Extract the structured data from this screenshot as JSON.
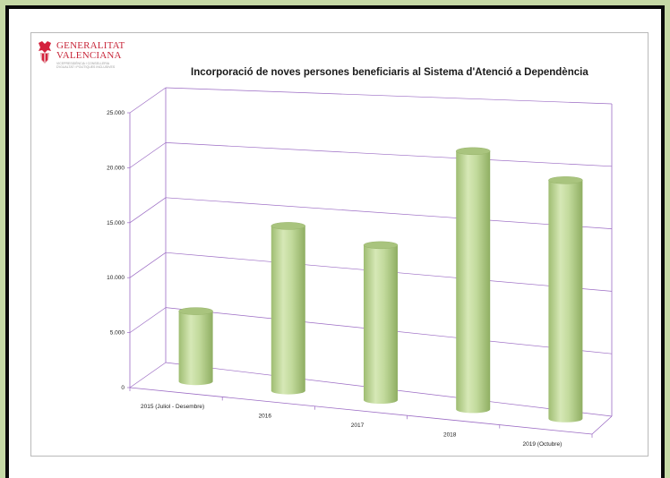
{
  "logo": {
    "line1": "GENERALITAT",
    "line2": "VALENCIANA",
    "sub1": "VICEPRESIDÈNCIA I CONSELLERIA",
    "sub2": "D'IGUALTAT I POLÍTIQUES INCLUSIVES",
    "colors": [
      "#d4213d",
      "#d4213d"
    ]
  },
  "chart_data": {
    "type": "bar",
    "title": "Incorporació de noves persones beneficiaris al Sistema d'Atenció a Dependència",
    "xlabel": "",
    "ylabel": "",
    "categories": [
      "2015 (Juliol - Desembre)",
      "2016",
      "2017",
      "2018",
      "2019 (Octubre)"
    ],
    "values": [
      6400,
      15000,
      14100,
      23500,
      21700
    ],
    "ylim": [
      0,
      25000
    ],
    "yticks": [
      0,
      5000,
      10000,
      15000,
      20000,
      25000
    ],
    "ytick_labels": [
      "0",
      "5.000",
      "10.000",
      "15.000",
      "20.000",
      "25.000"
    ],
    "grid": true,
    "style": "3d-cylinder",
    "colors": {
      "bar": "#bfd796",
      "grid": "#9b6bc4"
    }
  }
}
